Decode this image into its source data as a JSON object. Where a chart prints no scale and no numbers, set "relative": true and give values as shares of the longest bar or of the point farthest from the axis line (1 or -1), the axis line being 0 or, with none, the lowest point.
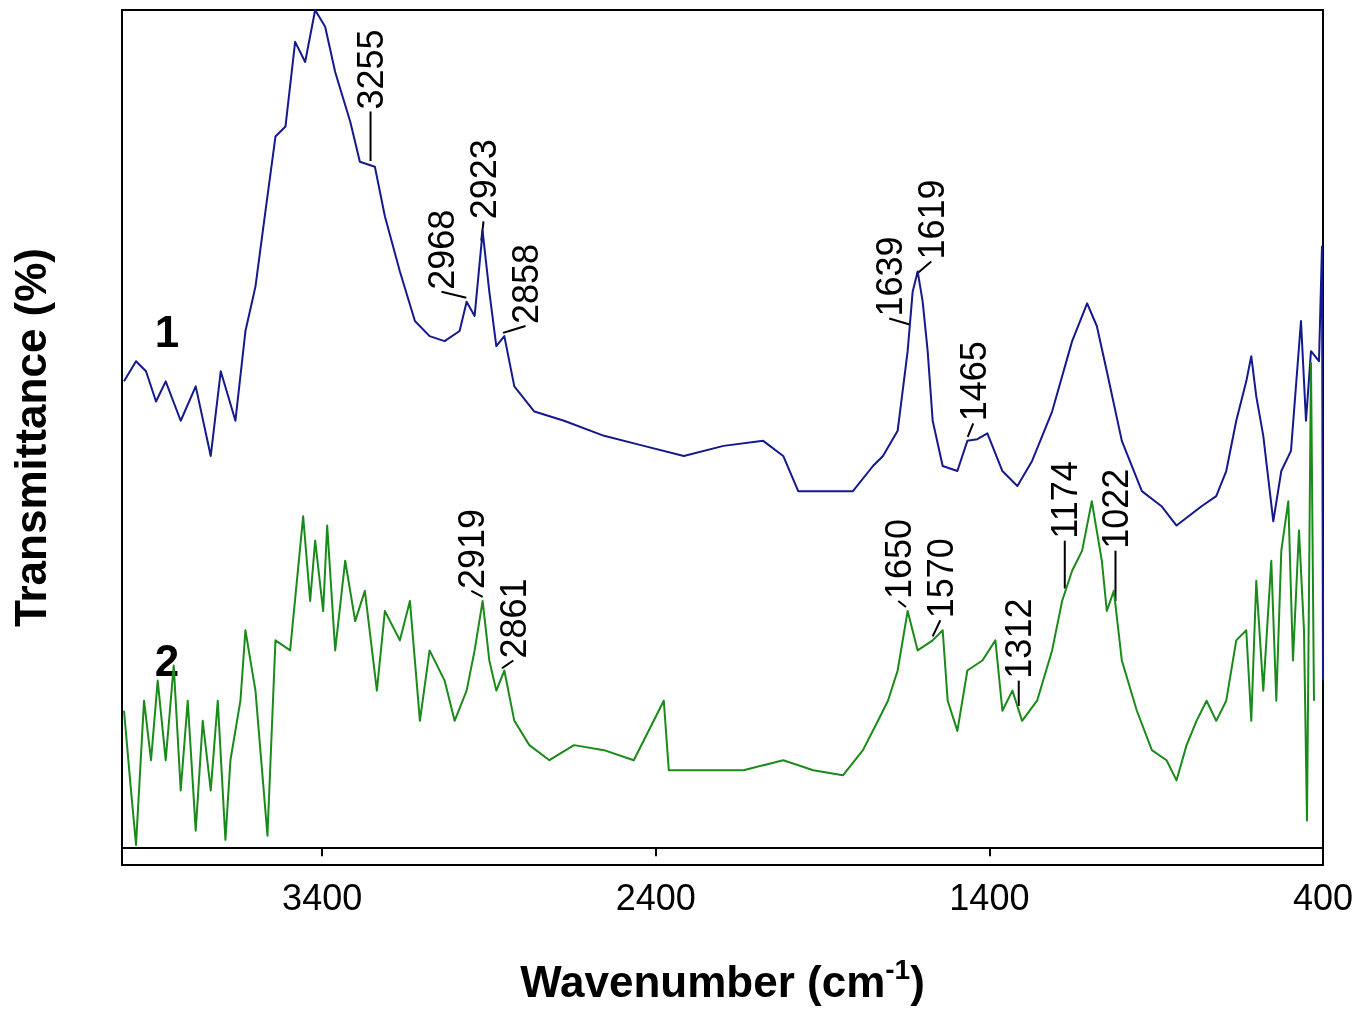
{
  "chart_data": {
    "type": "line",
    "relative": true,
    "xlabel": "Wavenumber (cm$^{-1}$)",
    "ylabel": "Transmittance (%)",
    "xlim": [
      4000,
      400
    ],
    "xticks": [
      3400,
      2400,
      1400,
      400
    ],
    "grid": false,
    "legend": false,
    "marker": "none",
    "line_style": "solid",
    "series": [
      {
        "name": "1",
        "color": "#14198c",
        "x": [
          3994,
          3958,
          3928,
          3898,
          3869,
          3824,
          3779,
          3734,
          3704,
          3660,
          3630,
          3600,
          3570,
          3540,
          3510,
          3481,
          3451,
          3421,
          3391,
          3361,
          3316,
          3287,
          3242,
          3212,
          3167,
          3122,
          3078,
          3033,
          2988,
          2967,
          2943,
          2919,
          2899,
          2878,
          2854,
          2824,
          2764,
          2675,
          2555,
          2436,
          2316,
          2197,
          2078,
          2018,
          1973,
          1899,
          1809,
          1749,
          1719,
          1675,
          1645,
          1630,
          1615,
          1600,
          1585,
          1570,
          1540,
          1496,
          1466,
          1436,
          1406,
          1361,
          1316,
          1272,
          1212,
          1152,
          1107,
          1078,
          1048,
          1003,
          943,
          884,
          839,
          764,
          720,
          690,
          660,
          630,
          615,
          600,
          579,
          549,
          525,
          496,
          466,
          451,
          436,
          412,
          403,
          400
        ],
        "values": [
          0.557,
          0.581,
          0.569,
          0.533,
          0.557,
          0.51,
          0.551,
          0.468,
          0.569,
          0.51,
          0.617,
          0.67,
          0.76,
          0.849,
          0.861,
          0.962,
          0.938,
          1,
          0.98,
          0.926,
          0.867,
          0.819,
          0.813,
          0.754,
          0.688,
          0.629,
          0.611,
          0.605,
          0.617,
          0.652,
          0.635,
          0.736,
          0.664,
          0.599,
          0.611,
          0.551,
          0.521,
          0.51,
          0.492,
          0.48,
          0.468,
          0.48,
          0.486,
          0.468,
          0.426,
          0.426,
          0.426,
          0.456,
          0.468,
          0.498,
          0.593,
          0.664,
          0.688,
          0.652,
          0.593,
          0.51,
          0.456,
          0.45,
          0.486,
          0.488,
          0.495,
          0.45,
          0.432,
          0.462,
          0.521,
          0.605,
          0.65,
          0.623,
          0.569,
          0.486,
          0.426,
          0.408,
          0.385,
          0.408,
          0.42,
          0.45,
          0.51,
          0.557,
          0.587,
          0.539,
          0.492,
          0.39,
          0.45,
          0.474,
          0.629,
          0.51,
          0.593,
          0.581,
          0.718,
          0.2
        ]
      },
      {
        "name": "2",
        "color": "#1a8a1a",
        "x": [
          3994,
          3973,
          3958,
          3934,
          3913,
          3893,
          3869,
          3845,
          3824,
          3803,
          3779,
          3758,
          3734,
          3713,
          3690,
          3675,
          3645,
          3630,
          3600,
          3564,
          3540,
          3496,
          3457,
          3436,
          3421,
          3397,
          3385,
          3361,
          3331,
          3301,
          3272,
          3236,
          3212,
          3167,
          3137,
          3107,
          3078,
          3033,
          3003,
          2967,
          2943,
          2919,
          2899,
          2878,
          2854,
          2824,
          2779,
          2719,
          2645,
          2555,
          2466,
          2376,
          2361,
          2257,
          2137,
          2018,
          1928,
          1839,
          1779,
          1734,
          1704,
          1675,
          1645,
          1615,
          1570,
          1540,
          1525,
          1496,
          1466,
          1421,
          1382,
          1361,
          1331,
          1302,
          1257,
          1212,
          1182,
          1152,
          1122,
          1093,
          1063,
          1048,
          1027,
          1003,
          958,
          913,
          869,
          839,
          809,
          779,
          749,
          720,
          690,
          660,
          630,
          615,
          600,
          579,
          555,
          540,
          525,
          504,
          490,
          472,
          457,
          448,
          436,
          427
        ],
        "values": [
          0.164,
          0.069,
          0.004,
          0.176,
          0.105,
          0.2,
          0.105,
          0.218,
          0.069,
          0.176,
          0.021,
          0.152,
          0.069,
          0.176,
          0.01,
          0.105,
          0.176,
          0.26,
          0.188,
          0.015,
          0.248,
          0.236,
          0.396,
          0.295,
          0.367,
          0.283,
          0.385,
          0.236,
          0.343,
          0.271,
          0.307,
          0.188,
          0.283,
          0.248,
          0.295,
          0.152,
          0.236,
          0.2,
          0.152,
          0.188,
          0.236,
          0.295,
          0.224,
          0.188,
          0.212,
          0.152,
          0.123,
          0.105,
          0.123,
          0.117,
          0.105,
          0.176,
          0.093,
          0.093,
          0.093,
          0.105,
          0.093,
          0.087,
          0.117,
          0.152,
          0.176,
          0.212,
          0.283,
          0.236,
          0.248,
          0.26,
          0.176,
          0.14,
          0.212,
          0.224,
          0.248,
          0.164,
          0.188,
          0.152,
          0.176,
          0.236,
          0.295,
          0.331,
          0.355,
          0.414,
          0.343,
          0.283,
          0.307,
          0.224,
          0.164,
          0.117,
          0.105,
          0.081,
          0.123,
          0.152,
          0.176,
          0.152,
          0.176,
          0.248,
          0.26,
          0.152,
          0.319,
          0.188,
          0.343,
          0.176,
          0.355,
          0.414,
          0.224,
          0.379,
          0.26,
          0.033,
          0.579,
          0.176
        ]
      }
    ],
    "annotations": [
      {
        "text": "3255",
        "x": 3255,
        "y": 0.815
      },
      {
        "text": "2968",
        "x": 2968,
        "y": 0.652
      },
      {
        "text": "2923",
        "x": 2923,
        "y": 0.72
      },
      {
        "text": "2858",
        "x": 2858,
        "y": 0.61
      },
      {
        "text": "1639",
        "x": 1639,
        "y": 0.62
      },
      {
        "text": "1619",
        "x": 1619,
        "y": 0.68
      },
      {
        "text": "1465",
        "x": 1465,
        "y": 0.486
      },
      {
        "text": "2919",
        "x": 2919,
        "y": 0.295
      },
      {
        "text": "2861",
        "x": 2861,
        "y": 0.21
      },
      {
        "text": "1650",
        "x": 1650,
        "y": 0.283
      },
      {
        "text": "1570",
        "x": 1570,
        "y": 0.248
      },
      {
        "text": "1312",
        "x": 1312,
        "y": 0.165
      },
      {
        "text": "1174",
        "x": 1174,
        "y": 0.305
      },
      {
        "text": "1022",
        "x": 1022,
        "y": 0.29
      }
    ]
  }
}
